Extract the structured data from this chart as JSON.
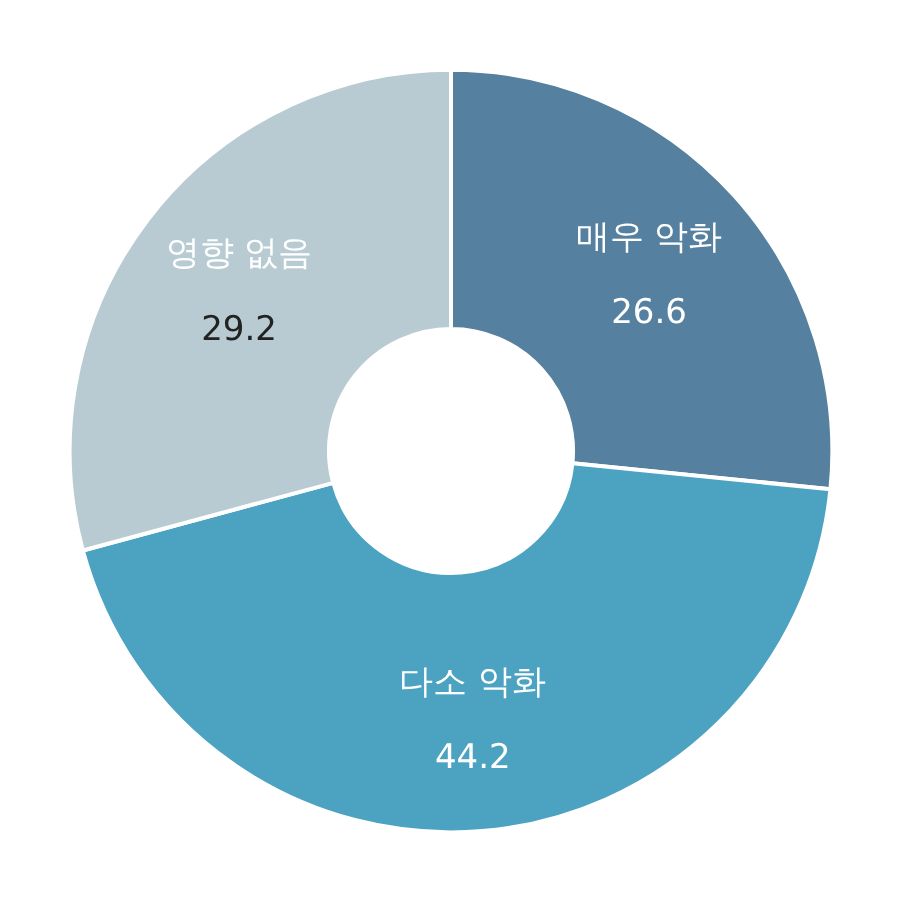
{
  "chart_data": {
    "type": "donut",
    "categories": [
      "매우 악화",
      "다소 악화",
      "영향 없음"
    ],
    "values": [
      26.6,
      44.2,
      29.2
    ],
    "colors": [
      "#56809f",
      "#4ba2c1",
      "#b8cbd3"
    ],
    "data_labels": true
  }
}
